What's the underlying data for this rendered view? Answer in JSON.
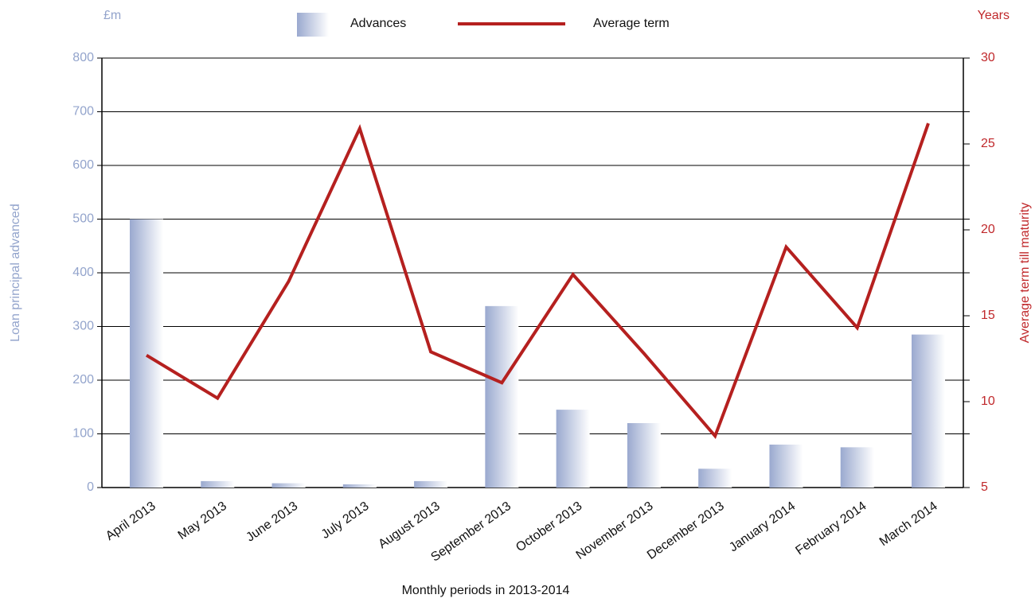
{
  "chart_data": {
    "type": "bar",
    "categories": [
      "April 2013",
      "May 2013",
      "June 2013",
      "July 2013",
      "August 2013",
      "September 2013",
      "October 2013",
      "November 2013",
      "December 2013",
      "January 2014",
      "February 2014",
      "March 2014"
    ],
    "series": [
      {
        "name": "Advances",
        "type": "bar",
        "color": "#9aa9cf",
        "values": [
          500,
          12,
          8,
          6,
          12,
          338,
          145,
          120,
          35,
          80,
          75,
          285
        ]
      },
      {
        "name": "Average term",
        "type": "line",
        "axis": "y2",
        "color": "#b5201f",
        "values": [
          12.7,
          10.2,
          17,
          25.9,
          12.9,
          11.1,
          17.4,
          12.8,
          8,
          19,
          14.3,
          26.2
        ]
      }
    ],
    "y_unit": "£m",
    "y2_unit": "Years",
    "ylabel": "Loan principal advanced",
    "y2label": "Average term till maturity",
    "xlabel": "Monthly periods in 2013-2014",
    "ylim": [
      0,
      800
    ],
    "yticks": [
      0,
      100,
      200,
      300,
      400,
      500,
      600,
      700,
      800
    ],
    "y2lim": [
      5,
      30
    ],
    "y2ticks": [
      5,
      10,
      15,
      20,
      25,
      30
    ],
    "grid": true
  }
}
